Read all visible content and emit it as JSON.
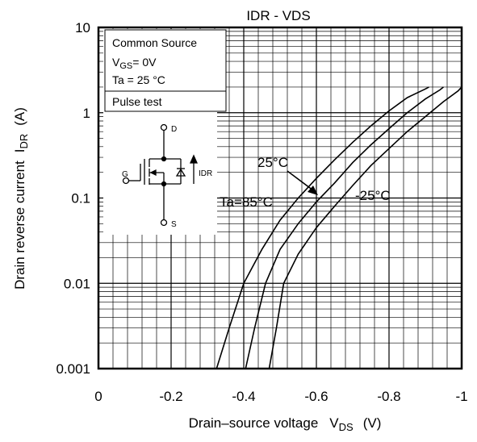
{
  "chart_data": {
    "type": "line",
    "title": "IDR - VDS",
    "xlabel": "Drain–source voltage",
    "xlabel_symbol": "V",
    "xlabel_sub": "DS",
    "xlabel_unit": "(V)",
    "ylabel": "Drain reverse current",
    "ylabel_symbol": "I",
    "ylabel_sub": "DR",
    "ylabel_unit": "(A)",
    "xlim": [
      0,
      -1
    ],
    "ylim": [
      0.001,
      10
    ],
    "yscale": "log",
    "grid": true,
    "x_ticks": [
      "0",
      "-0.2",
      "-0.4",
      "-0.6",
      "-0.8",
      "-1"
    ],
    "y_ticks": [
      "10",
      "1",
      "0.1",
      "0.01",
      "0.001"
    ],
    "conditions": {
      "line1": "Common Source",
      "line2_main": "V",
      "line2_sub": "GS",
      "line2_rest": "= 0V",
      "line3": "Ta = 25 °C",
      "line4": "Pulse test"
    },
    "circuit_labels": {
      "drain": "D",
      "gate": "G",
      "source": "S",
      "current": "IDR"
    },
    "series": [
      {
        "name": "Ta=85°C",
        "x": [
          -0.325,
          -0.36,
          -0.4,
          -0.45,
          -0.5,
          -0.55,
          -0.6,
          -0.65,
          -0.7,
          -0.75,
          -0.8,
          -0.85,
          -0.9,
          -0.91
        ],
        "y": [
          0.001,
          0.003,
          0.01,
          0.025,
          0.055,
          0.1,
          0.17,
          0.28,
          0.45,
          0.7,
          1.05,
          1.5,
          1.9,
          2
        ]
      },
      {
        "name": "25°C",
        "x": [
          -0.405,
          -0.43,
          -0.46,
          -0.5,
          -0.55,
          -0.6,
          -0.65,
          -0.7,
          -0.75,
          -0.8,
          -0.85,
          -0.9,
          -0.94,
          -0.95
        ],
        "y": [
          0.001,
          0.003,
          0.01,
          0.025,
          0.05,
          0.09,
          0.15,
          0.26,
          0.42,
          0.65,
          1.0,
          1.45,
          1.85,
          2
        ]
      },
      {
        "name": "-25°C",
        "x": [
          -0.47,
          -0.49,
          -0.51,
          -0.55,
          -0.6,
          -0.65,
          -0.7,
          -0.75,
          -0.8,
          -0.85,
          -0.9,
          -0.95,
          -0.99,
          -1.0
        ],
        "y": [
          0.001,
          0.003,
          0.01,
          0.022,
          0.045,
          0.08,
          0.14,
          0.24,
          0.38,
          0.6,
          0.9,
          1.35,
          1.8,
          2
        ]
      }
    ],
    "annotations": [
      {
        "text": "25°C"
      },
      {
        "text": "Ta=85°C"
      },
      {
        "text": "-25°C"
      }
    ]
  }
}
